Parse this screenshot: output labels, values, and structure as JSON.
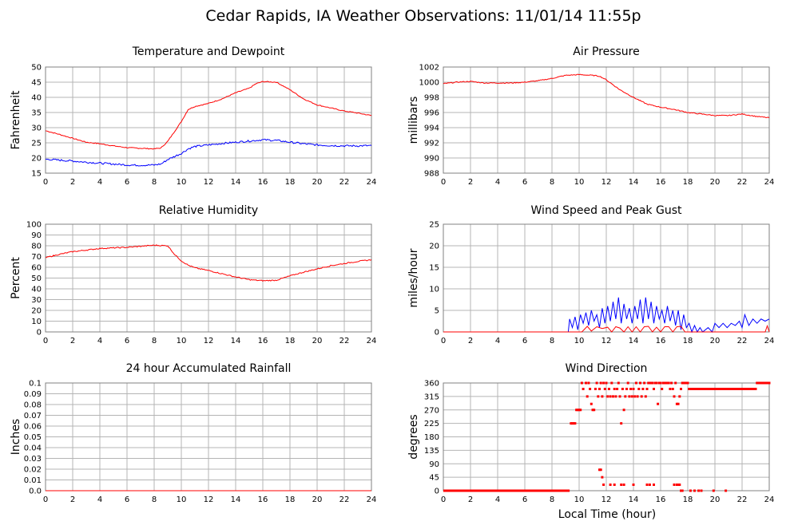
{
  "page": {
    "title": "Cedar Rapids, IA Weather Observations: 11/01/14 11:55p",
    "x_axis_label": "Local Time (hour)"
  },
  "colors": {
    "red": "#ff0000",
    "blue": "#0000ff",
    "grid": "#b4b4b4",
    "frame": "#808080"
  },
  "chart_data": [
    {
      "id": "temp",
      "type": "line",
      "title": "Temperature and Dewpoint",
      "ylabel": "Fahrenheit",
      "xlim": [
        0,
        24
      ],
      "ylim": [
        15,
        50
      ],
      "xticks": [
        0,
        2,
        4,
        6,
        8,
        10,
        12,
        14,
        16,
        18,
        20,
        22,
        24
      ],
      "yticks": [
        15,
        20,
        25,
        30,
        35,
        40,
        45,
        50
      ],
      "grid": true,
      "series": [
        {
          "color": "#ff0000",
          "noise": 0.15,
          "x": [
            0,
            1,
            2,
            3,
            4,
            5,
            6,
            7,
            8,
            8.5,
            9,
            10,
            10.5,
            11,
            12,
            13,
            14,
            15,
            15.5,
            16,
            17,
            18,
            19,
            20,
            21,
            22,
            23,
            24
          ],
          "y": [
            29,
            27.8,
            26.5,
            25.2,
            24.7,
            24,
            23.4,
            23.2,
            23,
            23.3,
            25.5,
            32,
            36,
            37,
            38,
            39.5,
            41.5,
            43,
            44.5,
            45.2,
            45,
            42.5,
            39.5,
            37.5,
            36.5,
            35.5,
            34.8,
            34
          ]
        },
        {
          "color": "#0000ff",
          "noise": 0.3,
          "x": [
            0,
            1,
            2,
            3,
            4,
            5,
            6,
            7,
            8,
            8.5,
            9,
            9.5,
            10,
            10.5,
            11,
            12,
            13,
            14,
            15,
            16,
            17,
            18,
            19,
            20,
            21,
            22,
            23,
            24
          ],
          "y": [
            19.6,
            19.3,
            19,
            18.6,
            18.3,
            18,
            17.7,
            17.6,
            17.7,
            18,
            19.5,
            20.5,
            21.5,
            23,
            23.8,
            24.3,
            24.8,
            25.2,
            25.6,
            26,
            25.8,
            25.2,
            24.7,
            24.3,
            24.1,
            24,
            24,
            24.1
          ]
        }
      ]
    },
    {
      "id": "pressure",
      "type": "line",
      "title": "Air Pressure",
      "ylabel": "millibars",
      "xlim": [
        0,
        24
      ],
      "ylim": [
        988,
        1002
      ],
      "xticks": [
        0,
        2,
        4,
        6,
        8,
        10,
        12,
        14,
        16,
        18,
        20,
        22,
        24
      ],
      "yticks": [
        988,
        990,
        992,
        994,
        996,
        998,
        1000,
        1002
      ],
      "grid": true,
      "series": [
        {
          "color": "#ff0000",
          "noise": 0.06,
          "x": [
            0,
            1,
            2,
            3,
            4,
            5,
            6,
            7,
            8,
            9,
            10,
            11,
            11.5,
            12,
            13,
            14,
            15,
            16,
            17,
            18,
            19,
            20,
            21,
            22,
            23,
            24
          ],
          "y": [
            999.8,
            1000,
            1000.1,
            999.9,
            999.9,
            999.9,
            1000,
            1000.2,
            1000.5,
            1000.9,
            1001,
            1000.9,
            1000.8,
            1000.3,
            999,
            998,
            997.1,
            996.7,
            996.4,
            996,
            995.8,
            995.6,
            995.6,
            995.8,
            995.5,
            995.3
          ]
        }
      ]
    },
    {
      "id": "humidity",
      "type": "line",
      "title": "Relative Humidity",
      "ylabel": "Percent",
      "xlim": [
        0,
        24
      ],
      "ylim": [
        0,
        100
      ],
      "xticks": [
        0,
        2,
        4,
        6,
        8,
        10,
        12,
        14,
        16,
        18,
        20,
        22,
        24
      ],
      "yticks": [
        0,
        10,
        20,
        30,
        40,
        50,
        60,
        70,
        80,
        90,
        100
      ],
      "grid": true,
      "series": [
        {
          "color": "#ff0000",
          "noise": 0.5,
          "x": [
            0,
            1,
            2,
            3,
            4,
            5,
            6,
            7,
            8,
            9,
            9.5,
            10,
            10.5,
            11,
            12,
            13,
            14,
            15,
            16,
            17,
            18,
            19,
            20,
            21,
            22,
            23,
            24
          ],
          "y": [
            69,
            72,
            74.5,
            76,
            77.5,
            78,
            78.5,
            79.5,
            80.5,
            80,
            72,
            66,
            62,
            59.5,
            57,
            54,
            51,
            48.5,
            47.5,
            48,
            52,
            55.5,
            58.5,
            61.5,
            63.5,
            65.5,
            67
          ]
        }
      ]
    },
    {
      "id": "wind",
      "type": "line",
      "title": "Wind Speed and Peak Gust",
      "ylabel": "miles/hour",
      "xlim": [
        0,
        24
      ],
      "ylim": [
        0,
        25
      ],
      "xticks": [
        0,
        2,
        4,
        6,
        8,
        10,
        12,
        14,
        16,
        18,
        20,
        22,
        24
      ],
      "yticks": [
        0,
        5,
        10,
        15,
        20,
        25
      ],
      "grid": true,
      "series": [
        {
          "color": "#0000ff",
          "x": [
            0,
            9.2,
            9.3,
            9.5,
            9.7,
            9.9,
            10.1,
            10.3,
            10.5,
            10.7,
            10.9,
            11.1,
            11.3,
            11.5,
            11.7,
            11.9,
            12.1,
            12.3,
            12.5,
            12.7,
            12.9,
            13.1,
            13.3,
            13.5,
            13.7,
            13.9,
            14.1,
            14.3,
            14.5,
            14.7,
            14.9,
            15.1,
            15.3,
            15.5,
            15.7,
            15.9,
            16.1,
            16.3,
            16.5,
            16.7,
            16.9,
            17.1,
            17.3,
            17.5,
            17.7,
            17.9,
            18.1,
            18.3,
            18.5,
            18.7,
            18.9,
            19.1,
            19.5,
            19.8,
            20,
            20.3,
            20.6,
            20.9,
            21.2,
            21.5,
            21.8,
            22,
            22.2,
            22.5,
            22.8,
            23.1,
            23.4,
            23.7,
            24
          ],
          "y": [
            0,
            0,
            3,
            1,
            3.5,
            0.5,
            4,
            2,
            4.5,
            1.5,
            5,
            2.5,
            4,
            1,
            5.5,
            2,
            6,
            2.5,
            7,
            3,
            8,
            2,
            6.5,
            3,
            5.5,
            2,
            6,
            3,
            7.5,
            2,
            8,
            3,
            7,
            2,
            6,
            3,
            5,
            2,
            6,
            2.5,
            5,
            1.5,
            5,
            0.5,
            4,
            1,
            2,
            0,
            1.5,
            0,
            1,
            0,
            1,
            0,
            2,
            1,
            2,
            1,
            2,
            1.5,
            2.5,
            1,
            4,
            1.5,
            3,
            2,
            3,
            2.5,
            3
          ]
        },
        {
          "color": "#ff0000",
          "x": [
            0,
            9.2,
            10.2,
            10.6,
            10.9,
            11.3,
            11.7,
            12.1,
            12.4,
            12.7,
            13,
            13.3,
            13.6,
            13.9,
            14.2,
            14.5,
            14.8,
            15.1,
            15.4,
            15.7,
            16,
            16.3,
            16.6,
            16.9,
            17.2,
            17.5,
            17.8,
            18,
            23.7,
            23.85,
            24
          ],
          "y": [
            0,
            0,
            0,
            1.3,
            0.2,
            1.2,
            0.8,
            1.1,
            0,
            1.2,
            0.9,
            0,
            1.2,
            0,
            1.2,
            0,
            1.2,
            1.3,
            0,
            1.1,
            0,
            1.2,
            1.2,
            0,
            1.2,
            1.3,
            0,
            0,
            0,
            1.4,
            0
          ]
        }
      ]
    },
    {
      "id": "rain",
      "type": "line",
      "title": "24 hour Accumulated Rainfall",
      "ylabel": "Inches",
      "xlim": [
        0,
        24
      ],
      "ylim": [
        0,
        0.1
      ],
      "xticks": [
        0,
        2,
        4,
        6,
        8,
        10,
        12,
        14,
        16,
        18,
        20,
        22,
        24
      ],
      "yticks": [
        0.0,
        0.01,
        0.02,
        0.03,
        0.04,
        0.05,
        0.06,
        0.07,
        0.08,
        0.09,
        0.1
      ],
      "ytick_labels": [
        "0.0",
        "0.01",
        "0.02",
        "0.03",
        "0.04",
        "0.05",
        "0.06",
        "0.07",
        "0.08",
        "0.09",
        "0.1"
      ],
      "grid": true,
      "series": [
        {
          "color": "#ff0000",
          "x": [
            0,
            24
          ],
          "y": [
            0,
            0
          ]
        }
      ]
    },
    {
      "id": "direction",
      "type": "scatter",
      "title": "Wind Direction",
      "ylabel": "degrees",
      "xlim": [
        0,
        24
      ],
      "ylim": [
        0,
        360
      ],
      "xticks": [
        0,
        2,
        4,
        6,
        8,
        10,
        12,
        14,
        16,
        18,
        20,
        22,
        24
      ],
      "yticks": [
        0,
        45,
        90,
        135,
        180,
        225,
        270,
        315,
        360
      ],
      "grid": true,
      "series": [
        {
          "color": "#ff0000",
          "x": [
            9.4,
            9.5,
            9.6,
            9.7,
            9.8,
            9.9,
            10.0,
            10.1,
            10.2,
            10.3,
            10.5,
            10.6,
            10.7,
            10.8,
            10.9,
            11.0,
            11.1,
            11.2,
            11.3,
            11.4,
            11.5,
            11.6,
            11.7,
            11.8,
            11.9,
            12.0,
            12.1,
            12.2,
            12.3,
            12.4,
            12.5,
            12.6,
            12.7,
            12.8,
            12.9,
            13.0,
            13.1,
            13.2,
            13.3,
            13.4,
            13.5,
            13.6,
            13.7,
            13.8,
            13.9,
            14.0,
            14.1,
            14.2,
            14.3,
            14.4,
            14.5,
            14.6,
            14.7,
            14.8,
            14.9,
            15.0,
            15.1,
            15.2,
            15.3,
            15.4,
            15.5,
            15.6,
            15.7,
            15.8,
            15.9,
            16.0,
            16.1,
            16.2,
            16.3,
            16.4,
            16.5,
            16.6,
            16.7,
            16.8,
            16.9,
            17.0,
            17.1,
            17.2,
            17.3,
            17.4,
            17.5,
            17.6,
            17.7,
            17.8,
            17.9,
            18.0,
            18.1,
            18.2,
            18.3,
            18.4,
            18.5,
            18.6,
            18.7,
            18.8,
            18.9,
            19.0,
            19.1,
            19.2,
            19.3,
            19.4,
            19.5,
            19.6,
            19.7,
            19.8,
            19.9,
            20.0,
            20.1,
            20.2,
            20.3,
            20.4,
            20.5,
            20.6,
            20.7,
            20.8,
            20.9,
            21.0,
            21.1,
            21.2,
            21.3,
            21.4,
            21.5,
            21.6,
            21.7,
            21.8,
            21.9,
            22.0,
            22.1,
            22.2,
            22.3,
            22.4,
            22.5,
            22.6,
            22.7,
            22.8,
            22.9,
            23.0,
            23.1,
            23.2,
            23.3,
            23.4,
            23.5,
            23.6,
            23.7,
            23.8,
            23.9,
            24.0,
            11.5,
            11.6,
            11.7,
            11.8,
            12.3,
            12.6,
            13.1,
            13.3,
            14.0,
            15.0,
            15.2,
            15.5,
            17.0,
            17.2,
            17.4,
            17.3,
            17.5,
            17.6,
            18.2,
            18.5,
            18.8,
            19.0,
            19.9,
            20.8
          ],
          "y": [
            225,
            225,
            225,
            225,
            270,
            270,
            270,
            270,
            360,
            340,
            360,
            315,
            360,
            340,
            290,
            270,
            270,
            340,
            360,
            315,
            340,
            360,
            315,
            360,
            340,
            360,
            315,
            340,
            315,
            360,
            315,
            340,
            315,
            340,
            360,
            315,
            225,
            340,
            270,
            315,
            340,
            360,
            315,
            340,
            315,
            340,
            315,
            360,
            315,
            340,
            360,
            315,
            340,
            360,
            315,
            340,
            360,
            360,
            360,
            360,
            340,
            360,
            360,
            290,
            360,
            360,
            340,
            360,
            360,
            360,
            360,
            360,
            340,
            360,
            340,
            315,
            360,
            290,
            290,
            315,
            340,
            360,
            360,
            360,
            360,
            360,
            340,
            340,
            340,
            340,
            340,
            340,
            340,
            340,
            340,
            340,
            340,
            340,
            340,
            340,
            340,
            340,
            340,
            340,
            340,
            340,
            340,
            340,
            340,
            340,
            340,
            340,
            340,
            340,
            340,
            340,
            340,
            340,
            340,
            340,
            340,
            340,
            340,
            340,
            340,
            340,
            340,
            340,
            340,
            340,
            340,
            340,
            340,
            340,
            340,
            340,
            360,
            360,
            360,
            360,
            360,
            360,
            360,
            360,
            360,
            360,
            70,
            70,
            45,
            20,
            20,
            20,
            20,
            20,
            20,
            20,
            20,
            20,
            20,
            20,
            20,
            20,
            0,
            0,
            0,
            0,
            0,
            0,
            0,
            0
          ],
          "baseline_segment": {
            "x": [
              0,
              9.3
            ],
            "y": 0
          }
        }
      ]
    }
  ]
}
